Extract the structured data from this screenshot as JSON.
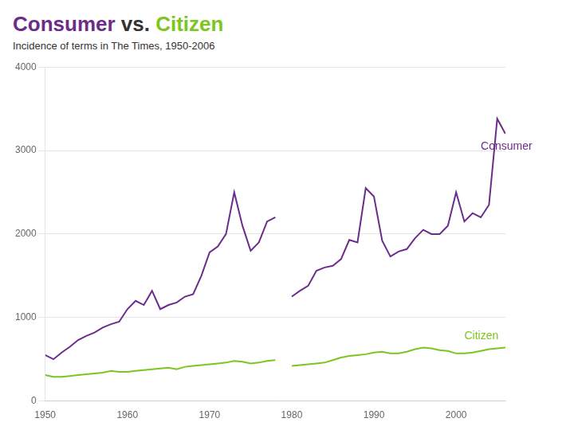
{
  "chart_data": {
    "type": "line",
    "title": "Consumer vs. Citizen",
    "subtitle": "Incidence of terms in The Times, 1950-2006",
    "x": [
      1950,
      1951,
      1952,
      1953,
      1954,
      1955,
      1956,
      1957,
      1958,
      1959,
      1960,
      1961,
      1962,
      1963,
      1964,
      1965,
      1966,
      1967,
      1968,
      1969,
      1970,
      1971,
      1972,
      1973,
      1974,
      1975,
      1976,
      1977,
      1978,
      1979,
      1980,
      1981,
      1982,
      1983,
      1984,
      1985,
      1986,
      1987,
      1988,
      1989,
      1990,
      1991,
      1992,
      1993,
      1994,
      1995,
      1996,
      1997,
      1998,
      1999,
      2000,
      2001,
      2002,
      2003,
      2004,
      2005,
      2006
    ],
    "series": [
      {
        "name": "Consumer",
        "color": "#6b2d8b",
        "values": [
          550,
          500,
          580,
          650,
          730,
          780,
          820,
          880,
          920,
          950,
          1100,
          1200,
          1150,
          1320,
          1100,
          1150,
          1180,
          1250,
          1280,
          1500,
          1780,
          1850,
          2000,
          2500,
          2100,
          1800,
          1900,
          2150,
          2200,
          null,
          1250,
          1320,
          1380,
          1560,
          1600,
          1620,
          1700,
          1930,
          1900,
          2550,
          2450,
          1920,
          1730,
          1790,
          1820,
          1950,
          2050,
          2000,
          2000,
          2100,
          2500,
          2150,
          2250,
          2200,
          2350,
          3380,
          3200
        ]
      },
      {
        "name": "Citizen",
        "color": "#7dc520",
        "values": [
          310,
          290,
          290,
          300,
          310,
          320,
          330,
          340,
          360,
          350,
          350,
          360,
          370,
          380,
          390,
          400,
          380,
          410,
          420,
          430,
          440,
          450,
          460,
          480,
          470,
          450,
          460,
          480,
          490,
          null,
          420,
          430,
          440,
          450,
          460,
          490,
          520,
          540,
          550,
          560,
          580,
          590,
          570,
          570,
          590,
          620,
          640,
          630,
          610,
          600,
          570,
          570,
          580,
          600,
          620,
          630,
          640
        ]
      }
    ],
    "xlim": [
      1950,
      2006
    ],
    "xticks": [
      1950,
      1960,
      1970,
      1980,
      1990,
      2000
    ],
    "ylim": [
      0,
      4000
    ],
    "yticks": [
      0,
      1000,
      2000,
      3000,
      4000
    ],
    "grid": true,
    "annotations": [
      {
        "text": "Consumer",
        "x": 2003,
        "y": 3050
      },
      {
        "text": "Citizen",
        "x": 2001,
        "y": 780
      }
    ]
  }
}
